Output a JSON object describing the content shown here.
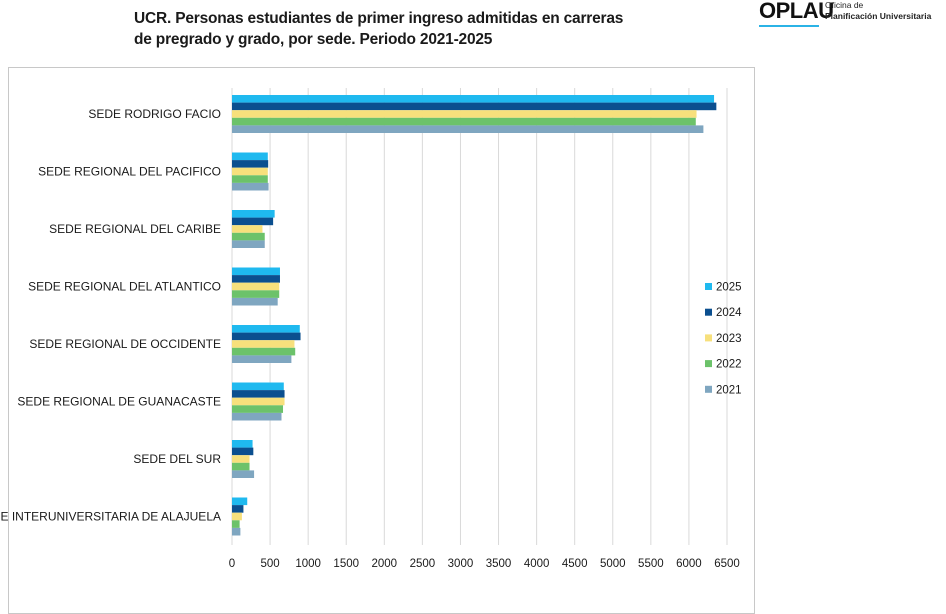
{
  "header": {
    "title_line1": "UCR. Personas estudiantes de primer ingreso admitidas en carreras",
    "title_line2": "de pregrado y grado, por sede. Periodo 2021-2025"
  },
  "logo": {
    "mark": "OPLAU",
    "sub_line1": "Oficina de",
    "sub_line2": "Planificación Universitaria",
    "accent_color": "#2bb3e6"
  },
  "chart_data": {
    "type": "bar",
    "orientation": "horizontal",
    "categories": [
      "SEDE RODRIGO FACIO",
      "SEDE REGIONAL DEL PACIFICO",
      "SEDE REGIONAL DEL CARIBE",
      "SEDE REGIONAL DEL ATLANTICO",
      "SEDE REGIONAL DE OCCIDENTE",
      "SEDE REGIONAL DE GUANACASTE",
      "SEDE DEL SUR",
      "SEDE INTERUNIVERSITARIA DE ALAJUELA"
    ],
    "series": [
      {
        "name": "2025",
        "color": "#1fb9ef",
        "values": [
          6330,
          470,
          560,
          630,
          890,
          680,
          270,
          200
        ]
      },
      {
        "name": "2024",
        "color": "#0b4f8f",
        "values": [
          6360,
          475,
          540,
          630,
          900,
          690,
          280,
          150
        ]
      },
      {
        "name": "2023",
        "color": "#f7e07c",
        "values": [
          6100,
          470,
          400,
          620,
          820,
          690,
          230,
          130
        ]
      },
      {
        "name": "2022",
        "color": "#6cc26a",
        "values": [
          6090,
          470,
          430,
          620,
          830,
          670,
          230,
          100
        ]
      },
      {
        "name": "2021",
        "color": "#7fa6c0",
        "values": [
          6190,
          480,
          430,
          600,
          780,
          650,
          290,
          110
        ]
      }
    ],
    "x_ticks": [
      0,
      500,
      1000,
      1500,
      2000,
      2500,
      3000,
      3500,
      4000,
      4500,
      5000,
      5500,
      6000,
      6500
    ],
    "xlim": [
      0,
      6500
    ],
    "grid": "vertical",
    "legend_position": "right"
  }
}
